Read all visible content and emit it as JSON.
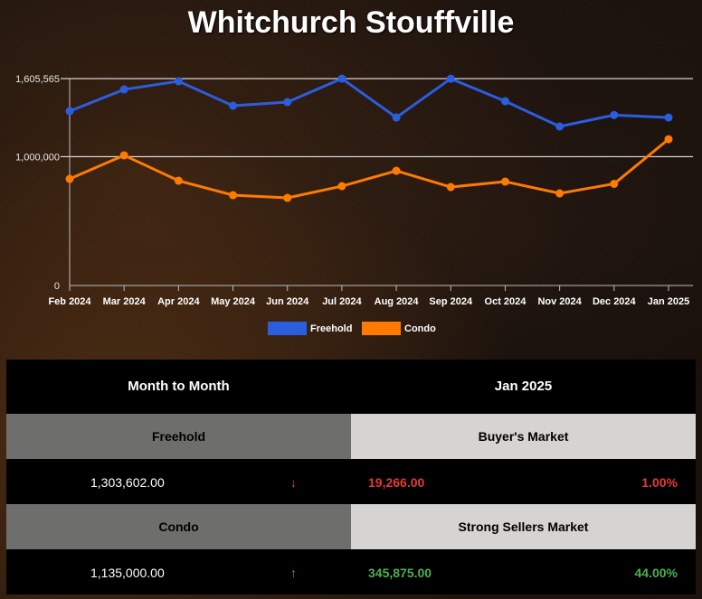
{
  "title": "Whitchurch Stouffville",
  "chart_data": {
    "type": "line",
    "title": "Whitchurch Stouffville",
    "xlabel": "",
    "ylabel": "",
    "categories": [
      "Feb 2024",
      "Mar 2024",
      "Apr 2024",
      "May 2024",
      "Jun 2024",
      "Jul 2024",
      "Aug 2024",
      "Sep 2024",
      "Oct 2024",
      "Nov 2024",
      "Dec 2024",
      "Jan 2025"
    ],
    "series": [
      {
        "name": "Freehold",
        "color": "#2b5ddf",
        "values": [
          1353000,
          1521000,
          1585000,
          1395000,
          1423000,
          1605565,
          1304000,
          1605000,
          1430000,
          1234000,
          1322868,
          1303602
        ]
      },
      {
        "name": "Condo",
        "color": "#ff7a00",
        "values": [
          827000,
          1010000,
          813000,
          701000,
          680000,
          771000,
          890000,
          764000,
          806000,
          715000,
          789125,
          1135000
        ]
      }
    ],
    "yticks": [
      {
        "value": 0,
        "label": "0"
      },
      {
        "value": 1000000,
        "label": "1,000,000"
      },
      {
        "value": 1605565,
        "label": "1,605,565"
      }
    ],
    "ylim": [
      0,
      1605565
    ],
    "grid": true,
    "legend_position": "bottom"
  },
  "legend": [
    {
      "label": "Freehold",
      "color": "#2b5ddf"
    },
    {
      "label": "Condo",
      "color": "#ff7a00"
    }
  ],
  "summary": {
    "header_left": "Month to Month",
    "header_right": "Jan 2025",
    "freehold": {
      "label": "Freehold",
      "market": "Buyer's Market",
      "price": "1,303,602.00",
      "direction": "down",
      "arrow": "↓",
      "change": "19,266.00",
      "percent": "1.00%"
    },
    "condo": {
      "label": "Condo",
      "market": "Strong Sellers Market",
      "price": "1,135,000.00",
      "direction": "up",
      "arrow": "↑",
      "change": "345,875.00",
      "percent": "44.00%"
    }
  }
}
